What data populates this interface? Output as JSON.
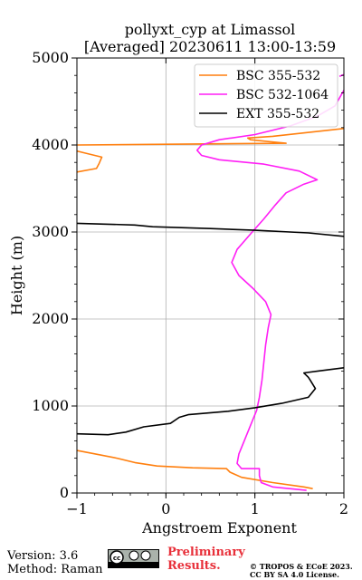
{
  "header": {
    "title_line1": "pollyxt_cyp at Limassol",
    "title_line2": "[Averaged] 20230611 13:00-13:59"
  },
  "footer": {
    "version": "Version: 3.6",
    "method": "Method: Raman",
    "preliminary": "Preliminary\nResults.",
    "copyright_line1": "© TROPOS & ECoE 2023.",
    "copyright_line2": "CC BY SA 4.0 License.",
    "badge_icon": "cc-by-sa-icon"
  },
  "chart_data": {
    "type": "line",
    "title": "pollyxt_cyp at Limassol [Averaged] 20230611 13:00-13:59",
    "xlabel": "Angstroem Exponent",
    "ylabel": "Height (m)",
    "xlim": [
      -1,
      2
    ],
    "ylim": [
      0,
      5000
    ],
    "x_ticks": [
      "−1",
      "0",
      "1",
      "2"
    ],
    "y_ticks": [
      "0",
      "1000",
      "2000",
      "3000",
      "4000",
      "5000"
    ],
    "grid": true,
    "legend_position": "top-right",
    "series": [
      {
        "name": "BSC 355-532",
        "color": "#ff7f0e",
        "segments": [
          [
            [
              1.65,
              50
            ],
            [
              1.55,
              70
            ],
            [
              1.2,
              120
            ],
            [
              0.85,
              180
            ],
            [
              0.72,
              240
            ],
            [
              0.68,
              280
            ],
            [
              0.3,
              290
            ],
            [
              -0.1,
              310
            ],
            [
              -0.35,
              350
            ],
            [
              -0.55,
              400
            ],
            [
              -0.8,
              450
            ],
            [
              -1.0,
              490
            ]
          ],
          [
            [
              -1.0,
              3690
            ],
            [
              -0.78,
              3730
            ],
            [
              -0.75,
              3790
            ],
            [
              -0.72,
              3860
            ],
            [
              -0.92,
              3910
            ],
            [
              -1.0,
              3930
            ]
          ],
          [
            [
              -1.0,
              4000
            ],
            [
              1.35,
              4020
            ],
            [
              1.15,
              4040
            ],
            [
              0.95,
              4060
            ],
            [
              0.92,
              4080
            ],
            [
              1.2,
              4100
            ],
            [
              2.0,
              4190
            ]
          ]
        ]
      },
      {
        "name": "BSC 532-1064",
        "color": "#ff1ff5",
        "segments": [
          [
            [
              1.58,
              30
            ],
            [
              1.2,
              70
            ],
            [
              1.07,
              120
            ],
            [
              1.05,
              200
            ],
            [
              1.05,
              280
            ],
            [
              0.85,
              280
            ],
            [
              0.8,
              340
            ],
            [
              0.82,
              450
            ],
            [
              0.88,
              600
            ],
            [
              0.96,
              800
            ],
            [
              1.02,
              950
            ],
            [
              1.05,
              1100
            ],
            [
              1.08,
              1300
            ],
            [
              1.1,
              1500
            ],
            [
              1.12,
              1700
            ],
            [
              1.15,
              1900
            ],
            [
              1.18,
              2050
            ],
            [
              1.12,
              2200
            ],
            [
              0.98,
              2350
            ],
            [
              0.82,
              2500
            ],
            [
              0.74,
              2650
            ],
            [
              0.8,
              2800
            ],
            [
              0.97,
              3000
            ],
            [
              1.1,
              3150
            ],
            [
              1.22,
              3300
            ],
            [
              1.35,
              3450
            ],
            [
              1.55,
              3550
            ],
            [
              1.7,
              3600
            ],
            [
              1.5,
              3700
            ],
            [
              1.1,
              3780
            ],
            [
              0.6,
              3830
            ],
            [
              0.4,
              3880
            ],
            [
              0.35,
              3940
            ],
            [
              0.4,
              4000
            ],
            [
              0.6,
              4060
            ],
            [
              1.0,
              4120
            ],
            [
              1.4,
              4220
            ],
            [
              1.7,
              4330
            ],
            [
              1.9,
              4450
            ],
            [
              2.0,
              4630
            ]
          ],
          [
            [
              1.95,
              4790
            ],
            [
              2.0,
              4810
            ]
          ]
        ]
      },
      {
        "name": "EXT 355-532",
        "color": "#000000",
        "segments": [
          [
            [
              -1.0,
              680
            ],
            [
              -0.65,
              670
            ],
            [
              -0.45,
              700
            ],
            [
              -0.25,
              760
            ],
            [
              0.05,
              800
            ],
            [
              0.15,
              870
            ],
            [
              0.25,
              900
            ],
            [
              0.7,
              940
            ],
            [
              1.0,
              980
            ],
            [
              1.3,
              1030
            ],
            [
              1.6,
              1100
            ],
            [
              1.68,
              1200
            ],
            [
              1.62,
              1300
            ],
            [
              1.6,
              1330
            ],
            [
              1.55,
              1380
            ],
            [
              1.7,
              1400
            ],
            [
              2.0,
              1440
            ]
          ],
          [
            [
              -1.0,
              3100
            ],
            [
              -0.65,
              3090
            ],
            [
              -0.35,
              3080
            ],
            [
              -0.15,
              3060
            ],
            [
              0.5,
              3040
            ],
            [
              1.0,
              3020
            ],
            [
              1.6,
              2990
            ],
            [
              2.0,
              2950
            ]
          ]
        ]
      }
    ]
  }
}
